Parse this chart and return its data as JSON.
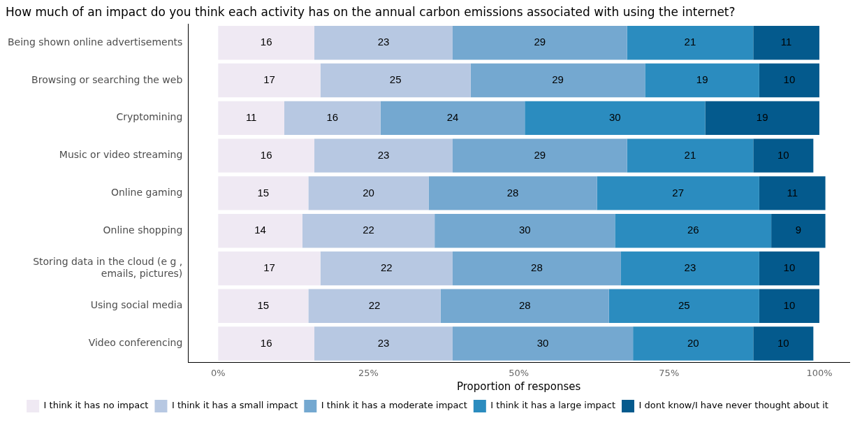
{
  "chart_data": {
    "type": "bar",
    "orientation": "horizontal",
    "stacked": true,
    "title": "How much of an impact do you think each activity has on the annual carbon emissions associated with using the internet?",
    "xlabel": "Proportion of responses",
    "categories": [
      "Being shown online advertisements",
      "Browsing or searching the web",
      "Cryptomining",
      "Music or video streaming",
      "Online gaming",
      "Online shopping",
      "Storing data in the cloud (e g , emails, pictures)",
      "Using social media",
      "Video conferencing"
    ],
    "series": [
      {
        "name": "I think it has no impact",
        "color": "#efe9f3",
        "values": [
          16,
          17,
          11,
          16,
          15,
          14,
          17,
          15,
          16
        ]
      },
      {
        "name": "I think it has a small impact",
        "color": "#b7c8e2",
        "values": [
          23,
          25,
          16,
          23,
          20,
          22,
          22,
          22,
          23
        ]
      },
      {
        "name": "I think it has a moderate impact",
        "color": "#74a8d0",
        "values": [
          29,
          29,
          24,
          29,
          28,
          30,
          28,
          28,
          30
        ]
      },
      {
        "name": "I think it has a large impact",
        "color": "#2b8cbf",
        "values": [
          21,
          19,
          30,
          21,
          27,
          26,
          23,
          25,
          20
        ]
      },
      {
        "name": "I dont know/I have never thought about it",
        "color": "#045a8d",
        "values": [
          11,
          10,
          19,
          10,
          11,
          9,
          10,
          10,
          10
        ]
      }
    ],
    "xlim": [
      -5,
      105
    ],
    "xticks": [
      {
        "value": 0,
        "label": "0%"
      },
      {
        "value": 25,
        "label": "25%"
      },
      {
        "value": 50,
        "label": "50%"
      },
      {
        "value": 75,
        "label": "75%"
      },
      {
        "value": 100,
        "label": "100%"
      }
    ],
    "data_labels": true,
    "grid": false,
    "legend": "bottom"
  }
}
